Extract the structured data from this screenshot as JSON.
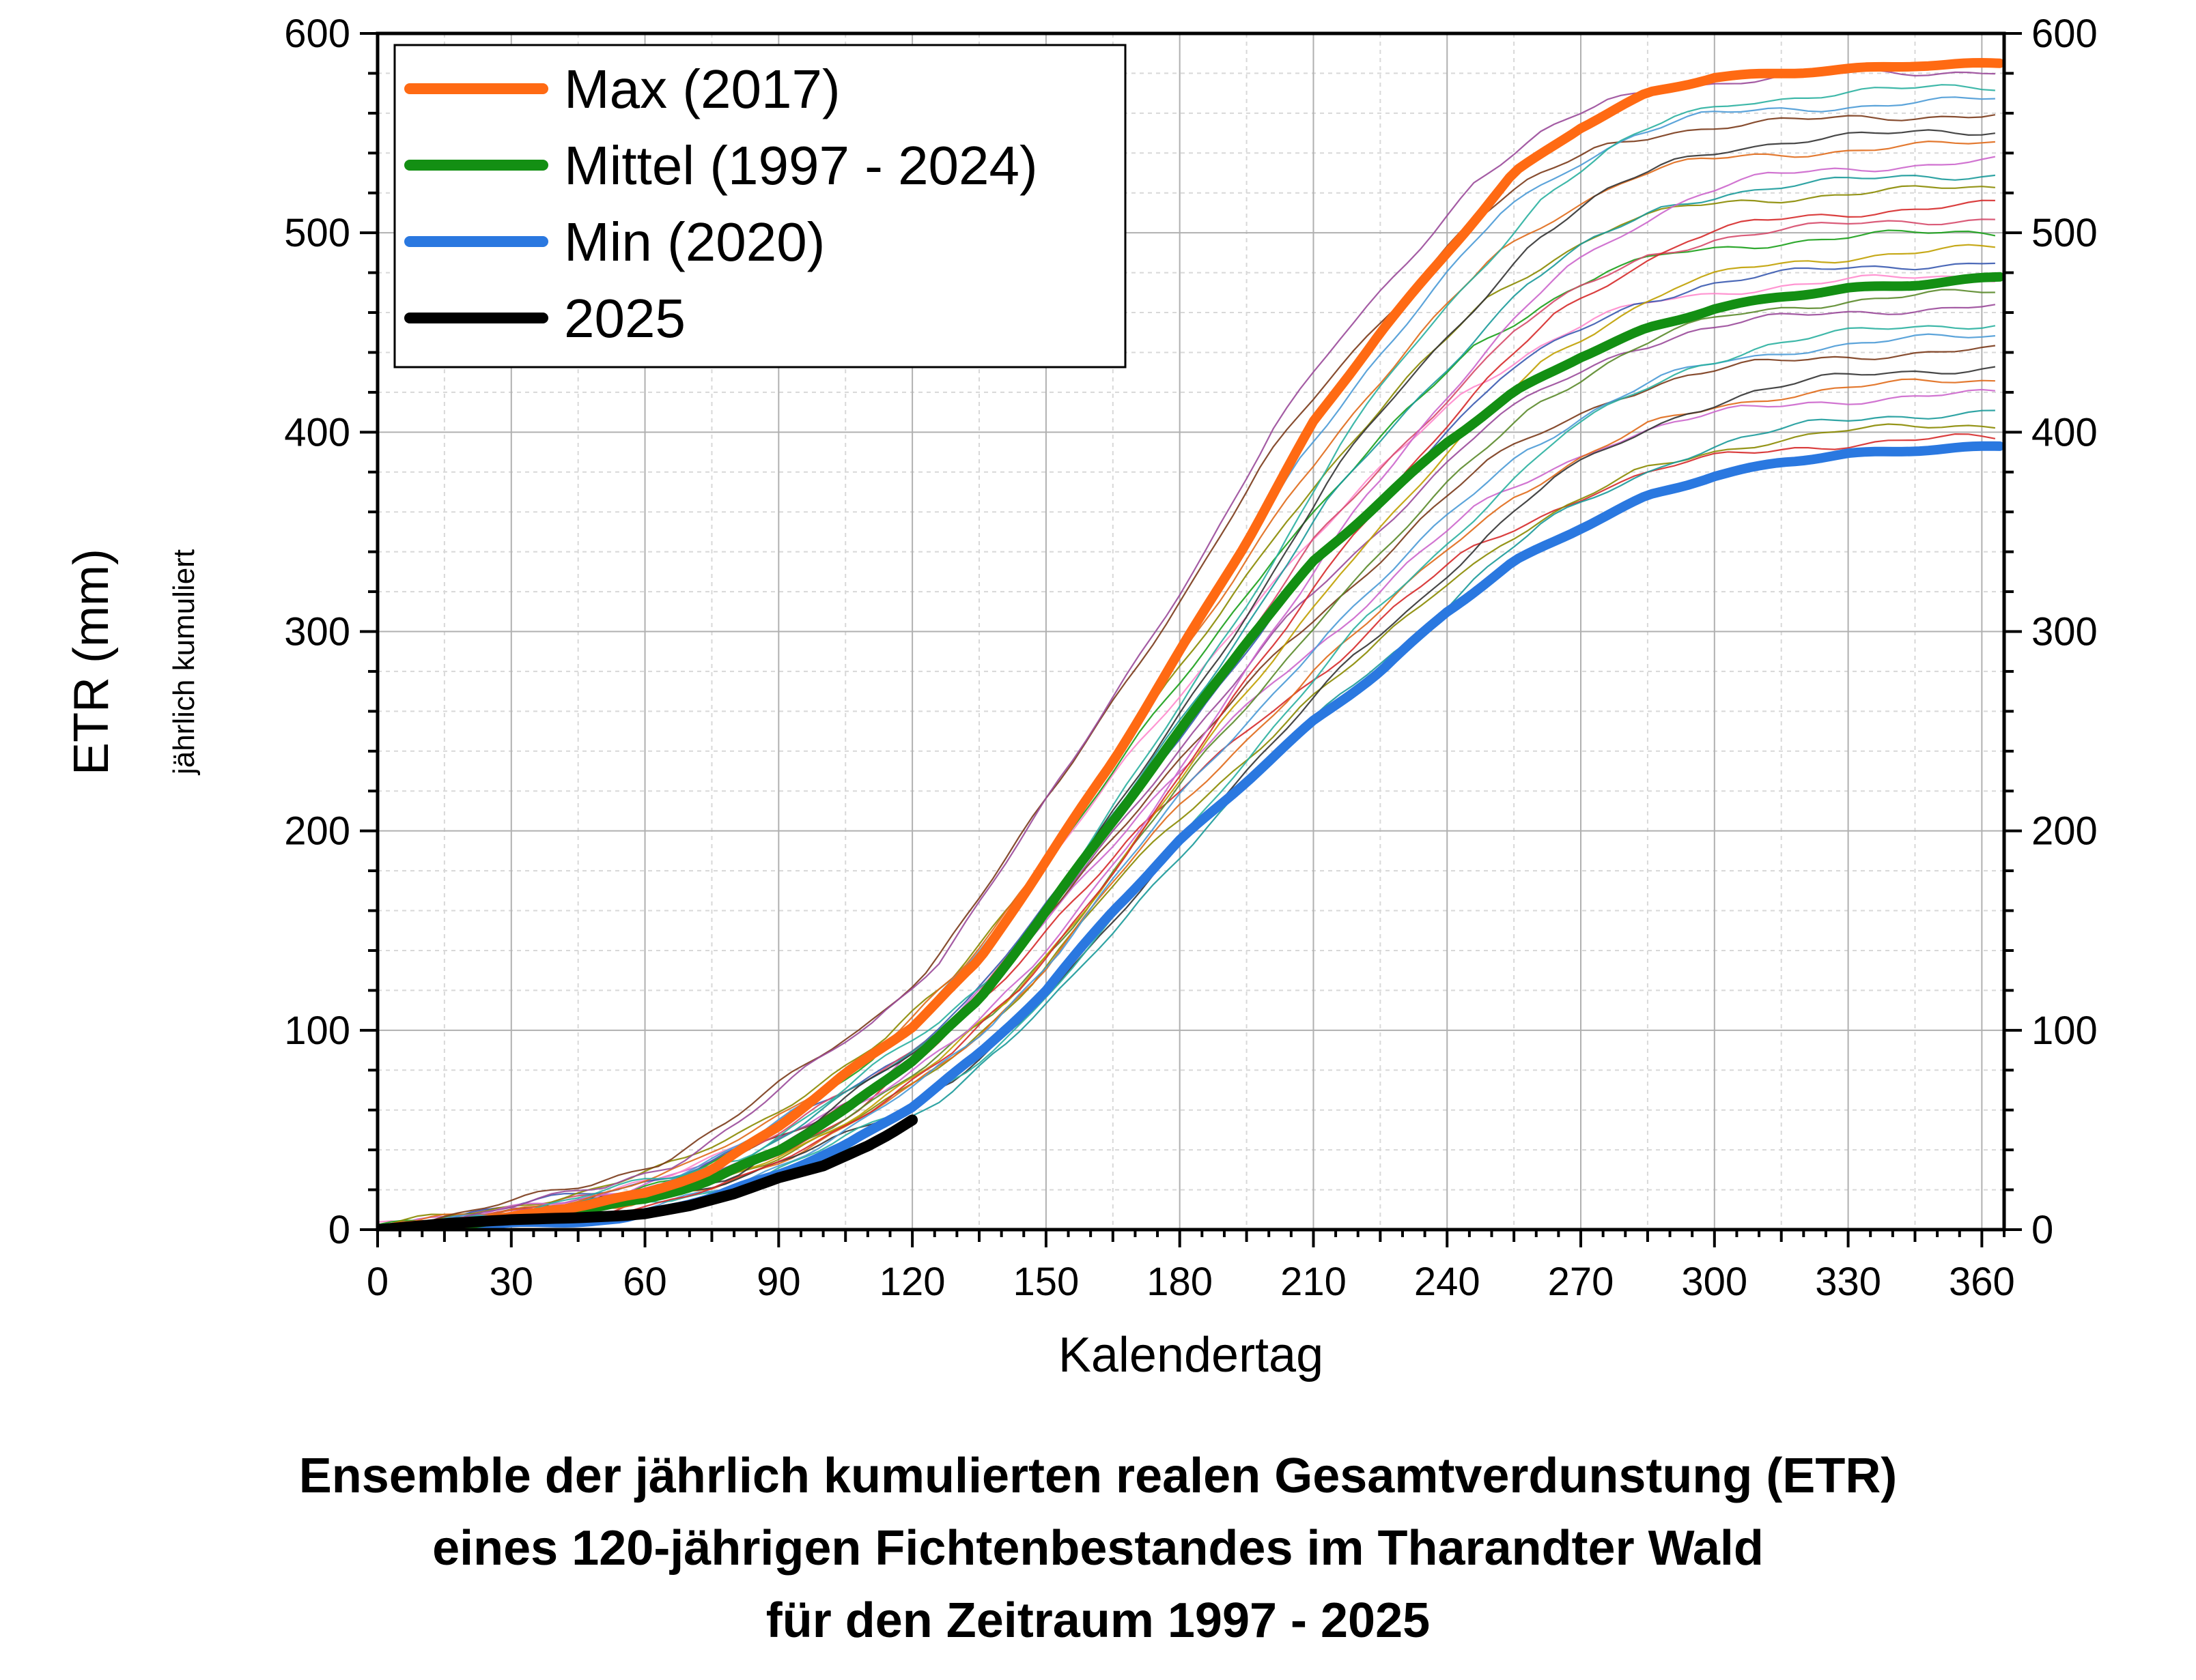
{
  "chart_data": {
    "type": "line",
    "xlabel": "Kalendertag",
    "ylabel": "ETR (mm)",
    "ylabel_sub": "jährlich kumuliert",
    "xlim": [
      0,
      365
    ],
    "ylim": [
      0,
      600
    ],
    "x_ticks": [
      "0",
      "30",
      "60",
      "90",
      "120",
      "150",
      "180",
      "210",
      "240",
      "270",
      "300",
      "330",
      "360"
    ],
    "y_ticks": [
      "0",
      "100",
      "200",
      "300",
      "400",
      "500",
      "600"
    ],
    "y_ticks_right": [
      "0",
      "100",
      "200",
      "300",
      "400",
      "500",
      "600"
    ],
    "grid": true,
    "legend_position": "top-left",
    "caption": [
      "Ensemble der jährlich kumulierten realen Gesamtverdunstung (ETR)",
      "eines 120-jährigen Fichtenbestandes im Tharandter Wald",
      "für den Zeitraum 1997 - 2025"
    ],
    "series": [
      {
        "name": "Max (2017)",
        "color": "#ff6a13",
        "x": [
          0,
          30,
          60,
          75,
          90,
          105,
          120,
          135,
          150,
          165,
          180,
          195,
          210,
          225,
          240,
          255,
          270,
          285,
          300,
          315,
          330,
          345,
          365
        ],
        "y": [
          0,
          6,
          18,
          30,
          52,
          78,
          102,
          135,
          185,
          235,
          290,
          345,
          405,
          450,
          490,
          530,
          553,
          570,
          578,
          580,
          582,
          584,
          585
        ]
      },
      {
        "name": "Mittel (1997 - 2024)",
        "color": "#138f13",
        "x": [
          0,
          30,
          60,
          75,
          90,
          105,
          120,
          135,
          150,
          165,
          180,
          195,
          210,
          225,
          240,
          255,
          270,
          285,
          300,
          315,
          330,
          345,
          365
        ],
        "y": [
          0,
          5,
          15,
          25,
          40,
          60,
          85,
          115,
          160,
          205,
          250,
          295,
          335,
          365,
          395,
          420,
          438,
          452,
          462,
          468,
          472,
          474,
          478
        ]
      },
      {
        "name": "Min (2020)",
        "color": "#2a78e0",
        "x": [
          0,
          30,
          55,
          60,
          75,
          90,
          105,
          120,
          135,
          150,
          165,
          180,
          195,
          210,
          225,
          240,
          255,
          270,
          285,
          300,
          315,
          330,
          345,
          365
        ],
        "y": [
          0,
          3,
          5,
          8,
          16,
          28,
          42,
          62,
          88,
          120,
          160,
          195,
          225,
          255,
          280,
          310,
          335,
          352,
          368,
          378,
          385,
          389,
          391,
          393
        ]
      },
      {
        "name": "2025",
        "color": "#000000",
        "x": [
          0,
          15,
          30,
          45,
          55,
          60,
          70,
          80,
          90,
          100,
          110,
          115,
          120
        ],
        "y": [
          0,
          3,
          5,
          6,
          7,
          8,
          12,
          18,
          26,
          32,
          42,
          48,
          55
        ]
      }
    ],
    "ensemble_color_list": [
      "#d62a2a",
      "#8a8a00",
      "#1a9a9a",
      "#cc66cc",
      "#e06a1a",
      "#333333",
      "#7a3a1a",
      "#4a9ad6",
      "#2ab0a0",
      "#9a4a9a",
      "#5a8a2a",
      "#ff88cc",
      "#3a5ab0",
      "#c0a000",
      "#1aa01a",
      "#d64a6a"
    ]
  }
}
